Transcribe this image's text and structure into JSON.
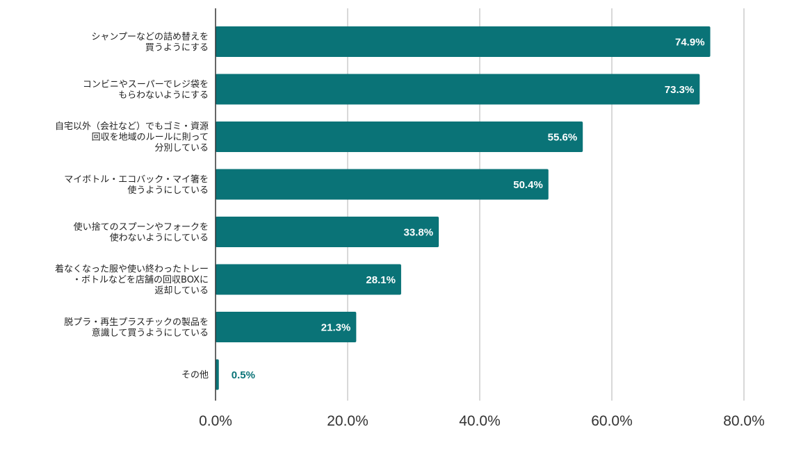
{
  "chart_data": {
    "type": "bar",
    "orientation": "horizontal",
    "categories": [
      [
        "シャンプーなどの詰め替えを",
        "買うようにする"
      ],
      [
        "コンビニやスーパーでレジ袋を",
        "もらわないようにする"
      ],
      [
        "自宅以外（会社など）でもゴミ・資源",
        "回収を地域のルールに則って",
        "分別している"
      ],
      [
        "マイボトル・エコバック・マイ箸を",
        "使うようにしている"
      ],
      [
        "使い捨てのスプーンやフォークを",
        "使わないようにしている"
      ],
      [
        "着なくなった服や使い終わったトレー",
        "・ボトルなどを店舗の回収BOXに",
        "返却している"
      ],
      [
        "脱プラ・再生プラスチックの製品を",
        "意識して買うようにしている"
      ],
      [
        "その他"
      ]
    ],
    "values": [
      74.9,
      73.3,
      55.6,
      50.4,
      33.8,
      28.1,
      21.3,
      0.5
    ],
    "value_labels": [
      "74.9%",
      "73.3%",
      "55.6%",
      "50.4%",
      "33.8%",
      "28.1%",
      "21.3%",
      "0.5%"
    ],
    "xlim": [
      0,
      80
    ],
    "x_ticks": [
      0,
      20,
      40,
      60,
      80
    ],
    "x_tick_labels": [
      "0.0%",
      "20.0%",
      "40.0%",
      "60.0%",
      "80.0%"
    ],
    "grid": true,
    "bar_color": "#0a7377",
    "grid_color": "#cccccc",
    "axis_color": "#333333"
  }
}
